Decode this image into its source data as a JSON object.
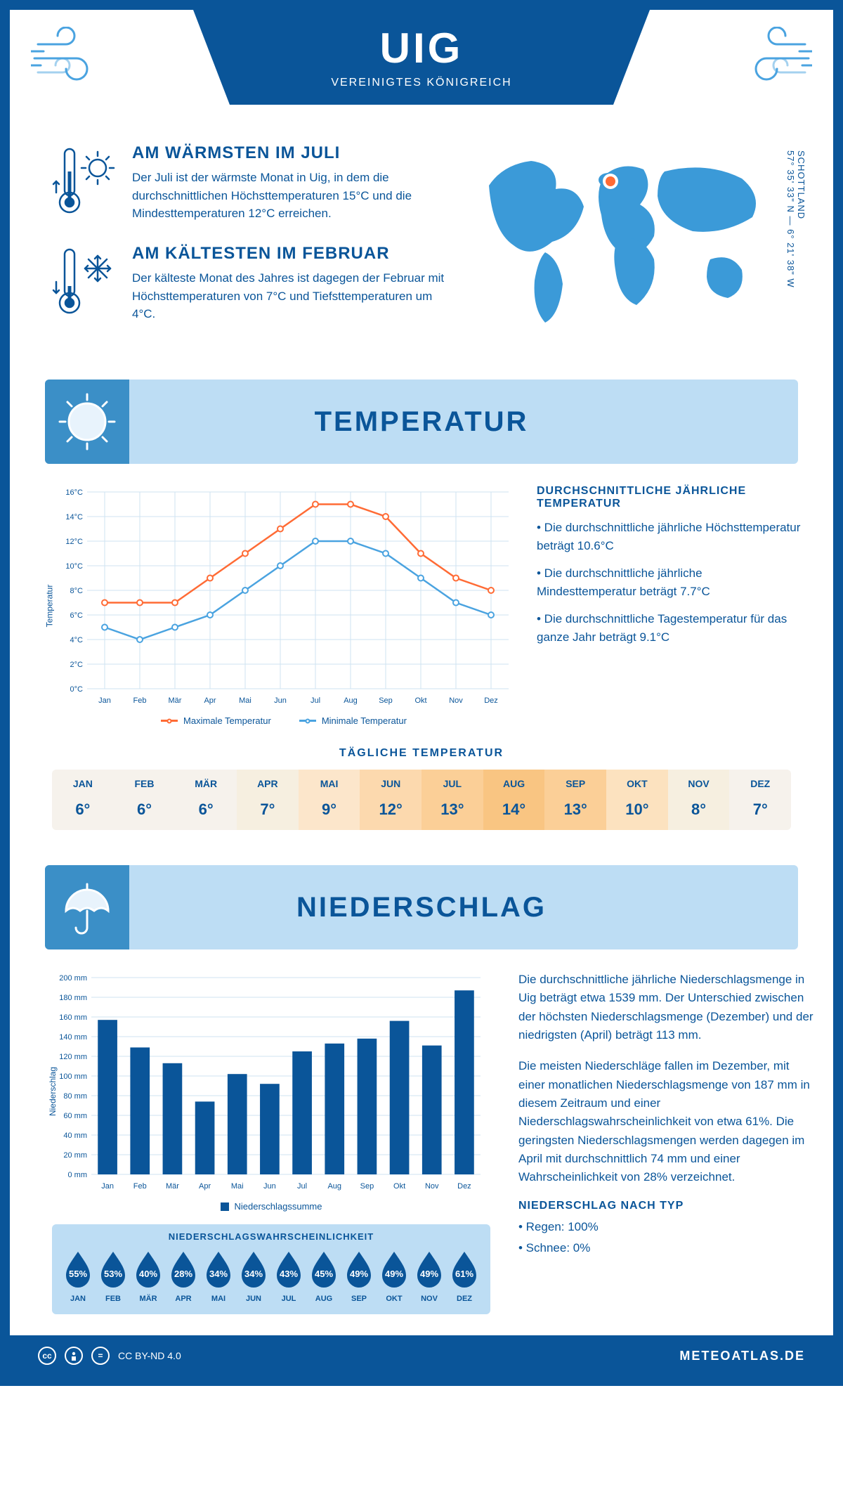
{
  "colors": {
    "primary": "#0a5599",
    "light_blue": "#bdddf4",
    "mid_blue": "#3b8fc7",
    "accent_blue": "#4aa3e0",
    "orange": "#ff6b35",
    "white": "#ffffff"
  },
  "header": {
    "title": "UIG",
    "subtitle": "VEREINIGTES KÖNIGREICH"
  },
  "coords": {
    "line1": "57° 35' 33\" N — 6° 21' 38\" W",
    "line2": "SCHOTTLAND"
  },
  "facts": {
    "warm": {
      "title": "AM WÄRMSTEN IM JULI",
      "text": "Der Juli ist der wärmste Monat in Uig, in dem die durchschnittlichen Höchsttemperaturen 15°C und die Mindesttemperaturen 12°C erreichen."
    },
    "cold": {
      "title": "AM KÄLTESTEN IM FEBRUAR",
      "text": "Der kälteste Monat des Jahres ist dagegen der Februar mit Höchsttemperaturen von 7°C und Tiefsttemperaturen um 4°C."
    }
  },
  "sections": {
    "temperature": "TEMPERATUR",
    "precipitation": "NIEDERSCHLAG"
  },
  "temp_chart": {
    "months": [
      "Jan",
      "Feb",
      "Mär",
      "Apr",
      "Mai",
      "Jun",
      "Jul",
      "Aug",
      "Sep",
      "Okt",
      "Nov",
      "Dez"
    ],
    "max": [
      7,
      7,
      7,
      9,
      11,
      13,
      15,
      15,
      14,
      11,
      9,
      8
    ],
    "min": [
      5,
      4,
      5,
      6,
      8,
      10,
      12,
      12,
      11,
      9,
      7,
      6
    ],
    "ylim": [
      0,
      16
    ],
    "ytick_step": 2,
    "y_suffix": "°C",
    "y_label": "Temperatur",
    "legend_max": "Maximale Temperatur",
    "legend_min": "Minimale Temperatur",
    "max_color": "#ff6b35",
    "min_color": "#4aa3e0"
  },
  "temp_info": {
    "title": "DURCHSCHNITTLICHE JÄHRLICHE TEMPERATUR",
    "p1": "• Die durchschnittliche jährliche Höchsttemperatur beträgt 10.6°C",
    "p2": "• Die durchschnittliche jährliche Mindesttemperatur beträgt 7.7°C",
    "p3": "• Die durchschnittliche Tagestemperatur für das ganze Jahr beträgt 9.1°C"
  },
  "daily_temp": {
    "title": "TÄGLICHE TEMPERATUR",
    "months": [
      "JAN",
      "FEB",
      "MÄR",
      "APR",
      "MAI",
      "JUN",
      "JUL",
      "AUG",
      "SEP",
      "OKT",
      "NOV",
      "DEZ"
    ],
    "values": [
      "6°",
      "6°",
      "6°",
      "7°",
      "9°",
      "12°",
      "13°",
      "14°",
      "13°",
      "10°",
      "8°",
      "7°"
    ],
    "cell_colors": [
      "#f6f2ec",
      "#f6f2ec",
      "#f6f2ec",
      "#f6efe0",
      "#fce6cb",
      "#fcd9ae",
      "#fbcf97",
      "#f9c582",
      "#fbcf97",
      "#fce2bf",
      "#f6efe0",
      "#f6f2ec"
    ]
  },
  "precip_chart": {
    "months": [
      "Jan",
      "Feb",
      "Mär",
      "Apr",
      "Mai",
      "Jun",
      "Jul",
      "Aug",
      "Sep",
      "Okt",
      "Nov",
      "Dez"
    ],
    "values": [
      157,
      129,
      113,
      74,
      102,
      92,
      125,
      133,
      138,
      156,
      131,
      187
    ],
    "ylim": [
      0,
      200
    ],
    "ytick_step": 20,
    "y_suffix": " mm",
    "y_label": "Niederschlag",
    "legend": "Niederschlagssumme",
    "bar_color": "#0a5599"
  },
  "precip_info": {
    "p1": "Die durchschnittliche jährliche Niederschlagsmenge in Uig beträgt etwa 1539 mm. Der Unterschied zwischen der höchsten Niederschlagsmenge (Dezember) und der niedrigsten (April) beträgt 113 mm.",
    "p2": "Die meisten Niederschläge fallen im Dezember, mit einer monatlichen Niederschlagsmenge von 187 mm in diesem Zeitraum und einer Niederschlagswahrscheinlichkeit von etwa 61%. Die geringsten Niederschlagsmengen werden dagegen im April mit durchschnittlich 74 mm und einer Wahrscheinlichkeit von 28% verzeichnet.",
    "type_title": "NIEDERSCHLAG NACH TYP",
    "type_rain": "• Regen: 100%",
    "type_snow": "• Schnee: 0%"
  },
  "prob": {
    "title": "NIEDERSCHLAGSWAHRSCHEINLICHKEIT",
    "months": [
      "JAN",
      "FEB",
      "MÄR",
      "APR",
      "MAI",
      "JUN",
      "JUL",
      "AUG",
      "SEP",
      "OKT",
      "NOV",
      "DEZ"
    ],
    "values": [
      "55%",
      "53%",
      "40%",
      "28%",
      "34%",
      "34%",
      "43%",
      "45%",
      "49%",
      "49%",
      "49%",
      "61%"
    ]
  },
  "footer": {
    "license": "CC BY-ND 4.0",
    "site": "METEOATLAS.DE"
  }
}
